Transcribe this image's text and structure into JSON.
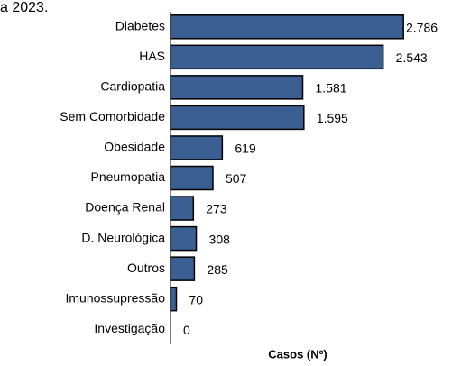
{
  "chart_data": {
    "type": "hbar",
    "title": "a 2023.",
    "x_label": "Casos (Nº)",
    "categories": [
      "Diabetes",
      "HAS",
      "Cardiopatia",
      "Sem Comorbidade",
      "Obesidade",
      "Pneumopatia",
      "Doença Renal",
      "D. Neurológica",
      "Outros",
      "Imunossupressão",
      "Investigação"
    ],
    "values": [
      2786,
      2543,
      1581,
      1595,
      619,
      507,
      273,
      308,
      285,
      70,
      0
    ],
    "value_labels": [
      "2.786",
      "2.543",
      "1.581",
      "1.595",
      "619",
      "507",
      "273",
      "308",
      "285",
      "70",
      "0"
    ],
    "color": "#3b5e93",
    "xlim": [
      0,
      3000
    ]
  }
}
